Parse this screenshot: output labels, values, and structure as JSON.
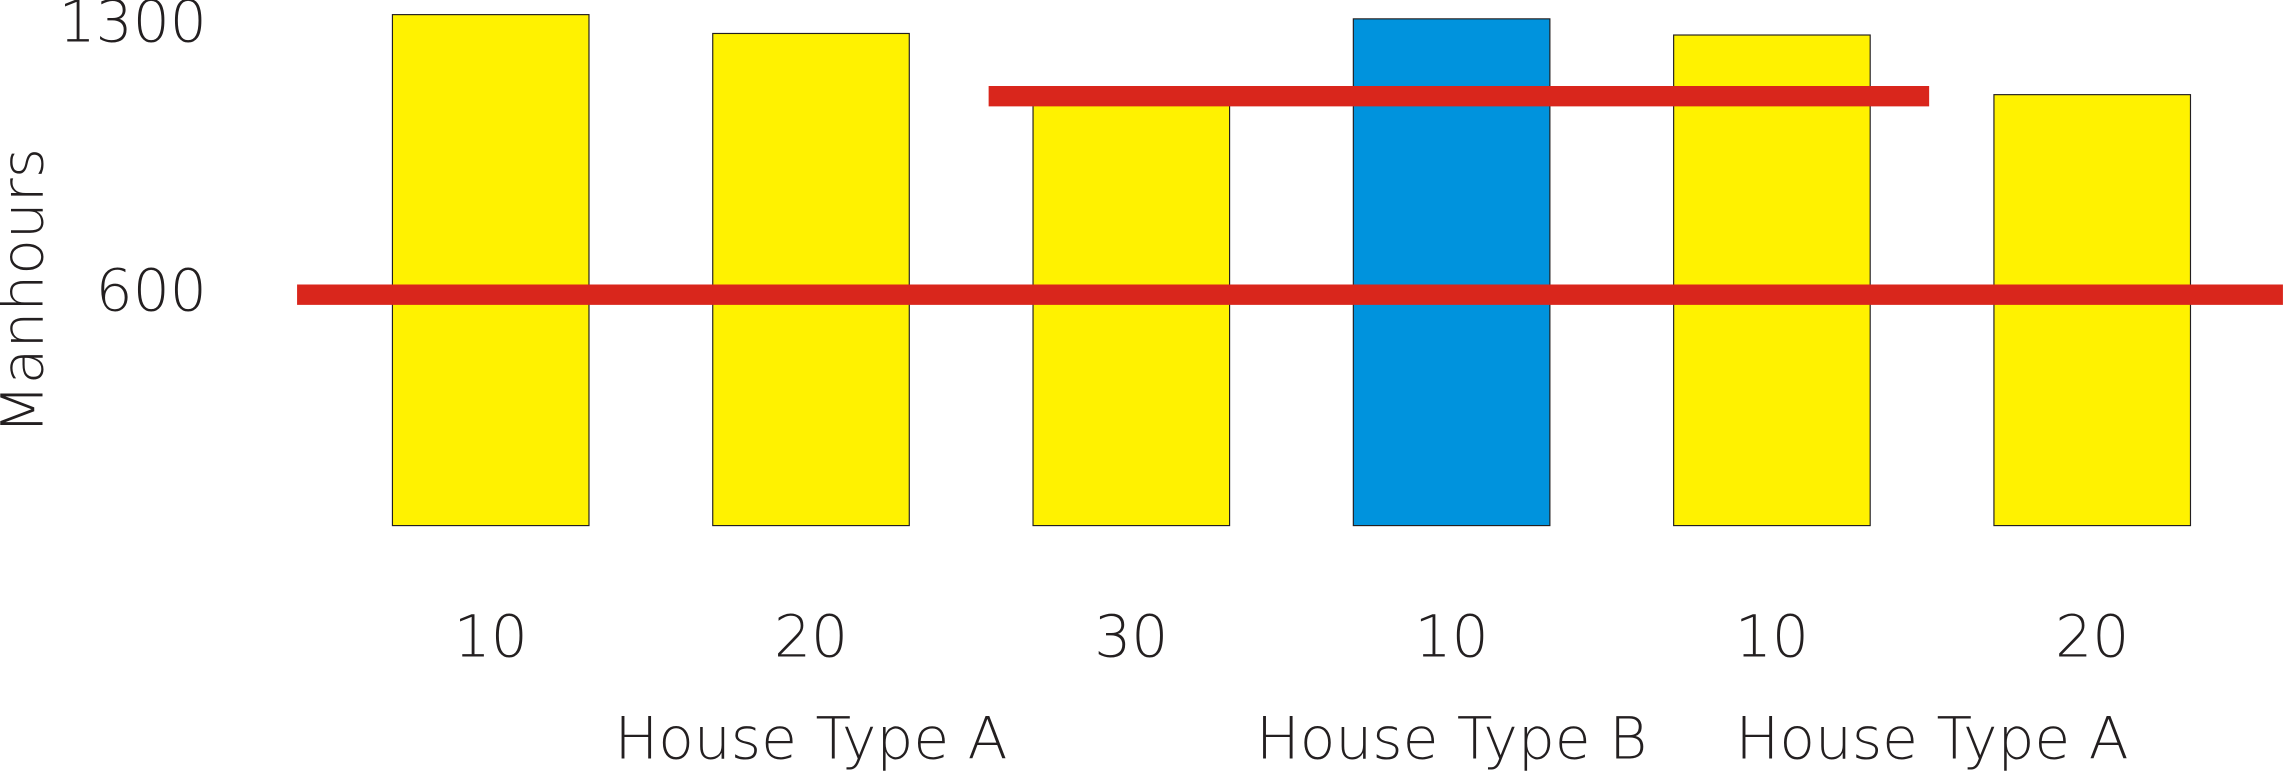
{
  "chart_data": {
    "type": "bar",
    "y_label": "Manhours",
    "categories": [
      "10",
      "20",
      "30",
      "10",
      "10",
      "20"
    ],
    "values": [
      1328,
      1279,
      1100,
      1317,
      1275,
      1120
    ],
    "colors": [
      "#fff200",
      "#fff200",
      "#fff200",
      "#0093dd",
      "#fff200",
      "#fff200"
    ],
    "groups": [
      {
        "label": "House Type A",
        "span": [
          0,
          2
        ]
      },
      {
        "label": "House Type B",
        "span": [
          3,
          3
        ]
      },
      {
        "label": "House Type A",
        "span": [
          4,
          5
        ]
      }
    ],
    "reference_lines": [
      {
        "value": 600,
        "color": "#d9261c"
      },
      {
        "value": 1116,
        "color": "#d9261c",
        "span": [
          2,
          4
        ]
      }
    ],
    "ylim": [
      0,
      1366
    ],
    "yticks": [
      600,
      1300
    ],
    "grid": false
  }
}
